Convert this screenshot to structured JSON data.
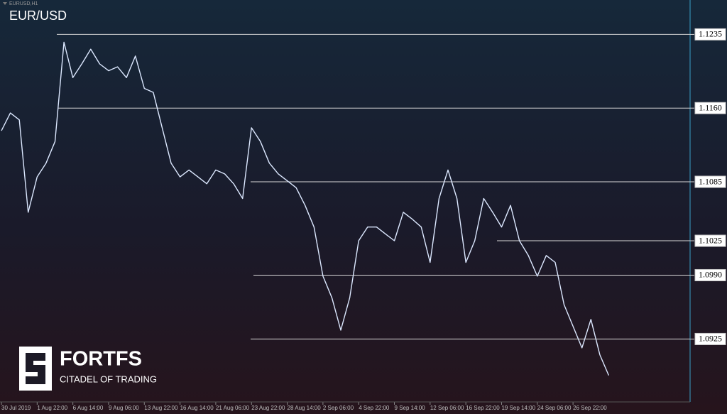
{
  "chart_data": {
    "type": "line",
    "window_title": "EURUSD,H1",
    "title": "EUR/USD",
    "brand": "FORTFS",
    "tagline": "CITADEL OF TRADING",
    "color": "#dce8ff",
    "categories": [
      "30 Jul 2019",
      null,
      null,
      null,
      "1 Aug 22:00",
      null,
      null,
      null,
      "6 Aug 14:00",
      null,
      null,
      null,
      "9 Aug 06:00",
      null,
      null,
      null,
      "13 Aug 22:00",
      null,
      null,
      null,
      "16 Aug 14:00",
      null,
      null,
      null,
      "21 Aug 06:00",
      null,
      null,
      null,
      "23 Aug 22:00",
      null,
      null,
      null,
      "28 Aug 14:00",
      null,
      null,
      null,
      "2 Sep 06:00",
      null,
      null,
      null,
      "4 Sep 22:00",
      null,
      null,
      null,
      "9 Sep 14:00",
      null,
      null,
      null,
      "12 Sep 06:00",
      null,
      null,
      null,
      "16 Sep 22:00",
      null,
      null,
      null,
      "19 Sep 14:00",
      null,
      null,
      null,
      "24 Sep 06:00",
      null,
      null,
      null,
      "26 Sep 22:00",
      null,
      null,
      null,
      null
    ],
    "values": [
      1.1137,
      1.1155,
      1.1148,
      1.1054,
      1.109,
      1.1104,
      1.1126,
      1.1227,
      1.1191,
      1.1205,
      1.122,
      1.1205,
      1.1198,
      1.1202,
      1.1191,
      1.1213,
      1.118,
      1.1176,
      1.114,
      1.1104,
      1.109,
      1.1097,
      1.109,
      1.1083,
      1.1097,
      1.1093,
      1.1083,
      1.1068,
      1.114,
      1.1126,
      1.1104,
      1.1093,
      1.1086,
      1.1079,
      1.1061,
      1.1039,
      1.0989,
      1.0967,
      1.0934,
      1.0967,
      1.1025,
      1.1039,
      1.1039,
      1.1032,
      1.1025,
      1.1054,
      1.1047,
      1.1039,
      1.1003,
      1.1068,
      1.1097,
      1.1068,
      1.1003,
      1.1025,
      1.1068,
      1.1054,
      1.1039,
      1.1061,
      1.1025,
      1.101,
      1.0989,
      1.101,
      1.1003,
      1.096,
      1.0938,
      1.0916,
      1.0945,
      1.0909,
      1.0888
    ],
    "ylim": [
      1.0861,
      1.127
    ],
    "yticks": [
      1.1235,
      {
        "value": 1.116,
        "label": "1.1160"
      },
      1.1085,
      1.1025,
      {
        "value": 1.099,
        "label": "1.0990"
      },
      1.0925
    ]
  }
}
